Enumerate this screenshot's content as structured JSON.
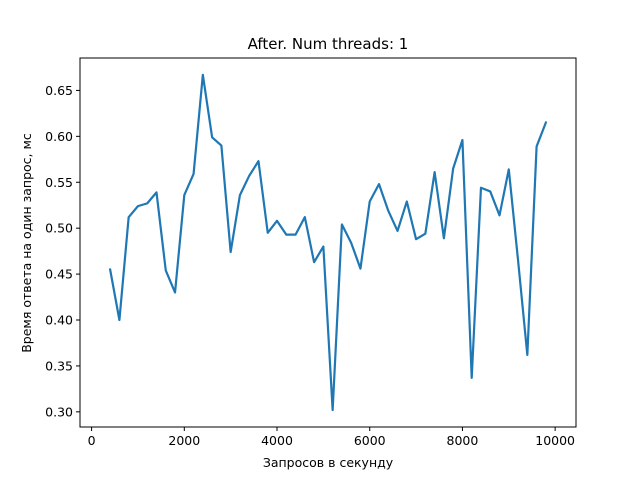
{
  "chart_data": {
    "type": "line",
    "title": "After. Num threads: 1",
    "xlabel": "Запросов в секунду",
    "ylabel": "Время ответа на один запрос, мс",
    "xlim": [
      -250,
      10450
    ],
    "ylim": [
      0.2835,
      0.6853
    ],
    "xticks": [
      0,
      2000,
      4000,
      6000,
      8000,
      10000
    ],
    "yticks": [
      0.3,
      0.35,
      0.4,
      0.45,
      0.5,
      0.55,
      0.6,
      0.65
    ],
    "ytick_labels": [
      "0.30",
      "0.35",
      "0.40",
      "0.45",
      "0.50",
      "0.55",
      "0.60",
      "0.65"
    ],
    "grid": false,
    "series": [
      {
        "color": "#1f77b4",
        "x": [
          400,
          600,
          800,
          1000,
          1200,
          1400,
          1600,
          1800,
          2000,
          2200,
          2400,
          2600,
          2800,
          3000,
          3200,
          3400,
          3600,
          3800,
          4000,
          4200,
          4400,
          4600,
          4800,
          5000,
          5200,
          5400,
          5600,
          5800,
          6000,
          6200,
          6400,
          6600,
          6800,
          7000,
          7200,
          7400,
          7600,
          7800,
          8000,
          8200,
          8400,
          8600,
          8800,
          9000,
          9200,
          9400,
          9600,
          9800
        ],
        "y": [
          0.455,
          0.4,
          0.512,
          0.524,
          0.527,
          0.539,
          0.454,
          0.43,
          0.536,
          0.559,
          0.667,
          0.599,
          0.59,
          0.474,
          0.536,
          0.557,
          0.573,
          0.495,
          0.508,
          0.493,
          0.493,
          0.512,
          0.463,
          0.48,
          0.302,
          0.504,
          0.484,
          0.456,
          0.529,
          0.548,
          0.519,
          0.497,
          0.529,
          0.488,
          0.494,
          0.561,
          0.489,
          0.565,
          0.596,
          0.337,
          0.544,
          0.54,
          0.514,
          0.564,
          0.465,
          0.362,
          0.589,
          0.615
        ]
      }
    ]
  }
}
